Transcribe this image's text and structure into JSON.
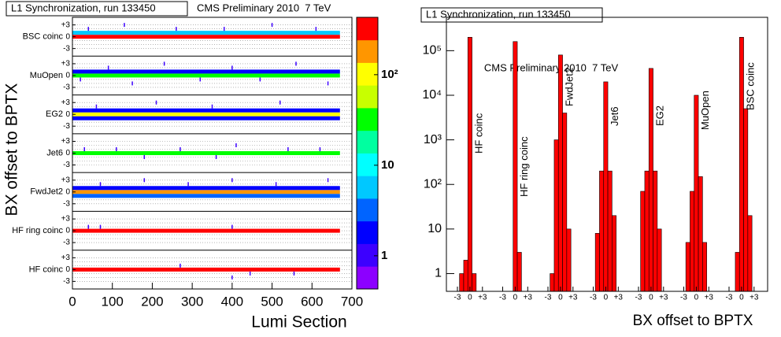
{
  "chart_data": [
    {
      "type": "heatmap",
      "title": "L1 Synchronization, run 133450",
      "annotation": "CMS Preliminary 2010  7 TeV",
      "xlabel": "Lumi Section",
      "ylabel": "BX offset to BPTX",
      "xlim": [
        0,
        700
      ],
      "xticks": [
        0,
        100,
        200,
        300,
        400,
        500,
        600,
        700
      ],
      "lumi_range": [
        1,
        670
      ],
      "offsets": [
        -3,
        -2,
        -1,
        0,
        1,
        2,
        3
      ],
      "yticks": [
        {
          "value": 3,
          "label": "+3"
        },
        0,
        -3
      ],
      "zlim": [
        0.43,
        430
      ],
      "log_z": true,
      "zticks": [
        1,
        10,
        {
          "value": 100,
          "label": "10²"
        }
      ],
      "palette": [
        "#8c00ff",
        "#3c00ff",
        "#0000ff",
        "#0064ff",
        "#00c8ff",
        "#00ffff",
        "#00ffa0",
        "#00ff00",
        "#c8ff00",
        "#ffff00",
        "#ff9600",
        "#ff0000"
      ],
      "rows": [
        {
          "name": "BSC coinc",
          "bands": [
            {
              "offset": 0,
              "level": 300
            },
            {
              "offset": 1,
              "level": 5
            }
          ],
          "cells": [
            [
              40,
              2,
              1
            ],
            [
              130,
              3,
              1
            ],
            [
              260,
              2,
              1
            ],
            [
              380,
              2,
              1
            ],
            [
              500,
              3,
              1
            ],
            [
              610,
              2,
              1
            ]
          ]
        },
        {
          "name": "MuOpen",
          "bands": [
            {
              "offset": 0,
              "level": 30
            },
            {
              "offset": 1,
              "level": 2
            }
          ],
          "cells": [
            [
              20,
              -1,
              1
            ],
            [
              90,
              2,
              1
            ],
            [
              150,
              -2,
              1
            ],
            [
              230,
              3,
              1
            ],
            [
              320,
              -1,
              1
            ],
            [
              400,
              2,
              1
            ],
            [
              470,
              -1,
              1
            ],
            [
              560,
              3,
              1
            ],
            [
              640,
              -2,
              1
            ]
          ]
        },
        {
          "name": "EG2",
          "bands": [
            {
              "offset": 0,
              "level": 100
            },
            {
              "offset": 1,
              "level": 2
            },
            {
              "offset": -1,
              "level": 2
            }
          ],
          "cells": [
            [
              60,
              2,
              1
            ],
            [
              210,
              3,
              1
            ],
            [
              350,
              2,
              1
            ],
            [
              520,
              3,
              1
            ]
          ]
        },
        {
          "name": "Jet6",
          "bands": [
            {
              "offset": 0,
              "level": 25
            }
          ],
          "cells": [
            [
              30,
              1,
              1
            ],
            [
              110,
              1,
              1
            ],
            [
              180,
              -1,
              1
            ],
            [
              270,
              1,
              1
            ],
            [
              360,
              -1,
              1
            ],
            [
              410,
              2,
              1
            ],
            [
              540,
              1,
              1
            ],
            [
              620,
              1,
              1
            ]
          ]
        },
        {
          "name": "FwdJet2",
          "bands": [
            {
              "offset": 0,
              "level": 180
            },
            {
              "offset": 1,
              "level": 2
            },
            {
              "offset": -1,
              "level": 3
            }
          ],
          "cells": [
            [
              70,
              2,
              1
            ],
            [
              180,
              3,
              1
            ],
            [
              290,
              2,
              1
            ],
            [
              400,
              3,
              1
            ],
            [
              510,
              2,
              1
            ],
            [
              640,
              3,
              1
            ]
          ]
        },
        {
          "name": "HF ring coinc",
          "bands": [
            {
              "offset": 0,
              "level": 300
            }
          ],
          "cells": [
            [
              40,
              1,
              1
            ],
            [
              70,
              1,
              1
            ],
            [
              400,
              1,
              1
            ]
          ]
        },
        {
          "name": "HF coinc",
          "bands": [
            {
              "offset": 0,
              "level": 300
            }
          ],
          "cells": [
            [
              270,
              1,
              1
            ],
            [
              400,
              -2,
              1
            ],
            [
              445,
              -1,
              1
            ],
            [
              555,
              -1,
              1
            ]
          ]
        }
      ]
    },
    {
      "type": "histogram",
      "title": "L1 Synchronization, run 133450",
      "annotation": "CMS Preliminary 2010  7 TeV",
      "xlabel": "BX offset to BPTX",
      "offsets": [
        -3,
        -2,
        -1,
        0,
        1,
        2,
        3
      ],
      "xticks": [
        -3,
        0,
        {
          "value": 3,
          "label": "+3"
        }
      ],
      "ylim": [
        0.4,
        560000
      ],
      "log_y": true,
      "yticks": [
        1,
        10,
        {
          "value": 100,
          "label": "10²"
        },
        {
          "value": 1000,
          "label": "10³"
        },
        {
          "value": 10000,
          "label": "10⁴"
        },
        {
          "value": 100000,
          "label": "10⁵"
        }
      ],
      "color": "#ff0000",
      "groups": [
        {
          "name": "HF coinc",
          "values": [
            null,
            1,
            2,
            200000,
            1,
            null,
            null
          ]
        },
        {
          "name": "HF ring coinc",
          "values": [
            null,
            null,
            null,
            160000,
            3,
            null,
            null
          ]
        },
        {
          "name": "FwdJet2",
          "values": [
            null,
            1,
            1000,
            80000,
            4000,
            10,
            null
          ]
        },
        {
          "name": "Jet6",
          "values": [
            null,
            8,
            200,
            20000,
            200,
            20,
            null
          ]
        },
        {
          "name": "EG2",
          "values": [
            null,
            70,
            200,
            40000,
            200,
            10,
            null
          ]
        },
        {
          "name": "MuOpen",
          "values": [
            null,
            5,
            70,
            10000,
            150,
            5,
            null
          ]
        },
        {
          "name": "BSC coinc",
          "values": [
            null,
            null,
            3,
            200000,
            5000,
            20,
            null
          ]
        }
      ]
    }
  ]
}
